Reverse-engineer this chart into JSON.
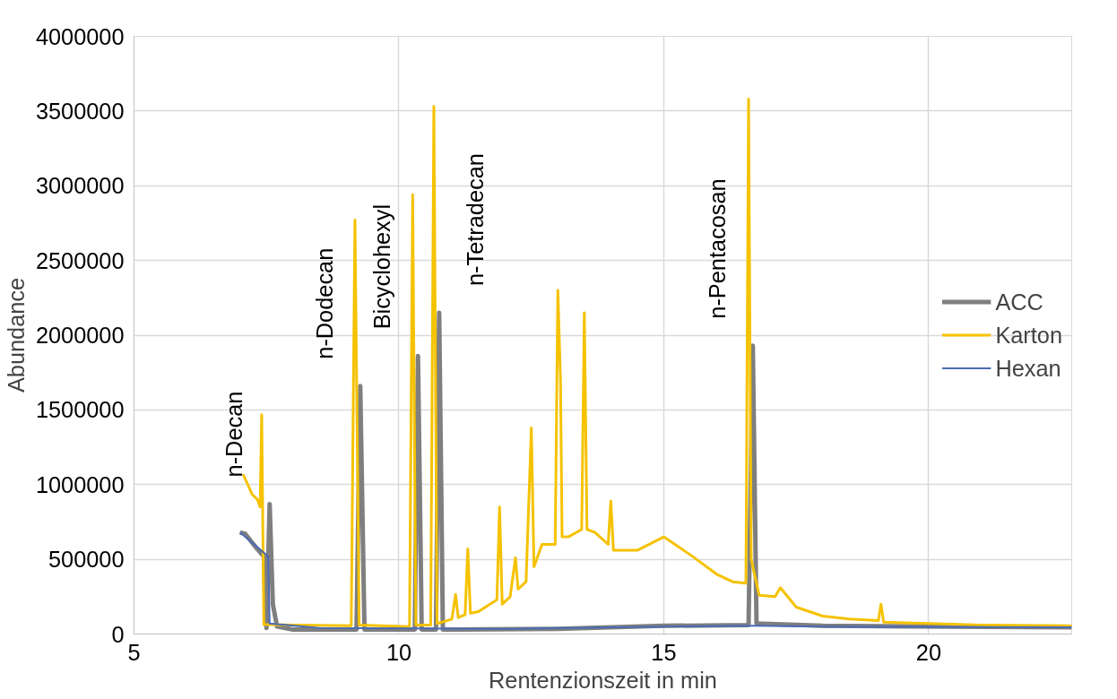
{
  "chart_data": {
    "type": "line",
    "xlabel": "Rentenzionszeit in min",
    "ylabel": "Abundance",
    "xlim": [
      5,
      22.7
    ],
    "ylim": [
      0,
      4000000
    ],
    "xticks": [
      5,
      10,
      15,
      20
    ],
    "yticks": [
      0,
      500000,
      1000000,
      1500000,
      2000000,
      2500000,
      3000000,
      3500000,
      4000000
    ],
    "grid": true,
    "legend": "right",
    "line_style": "solid",
    "marker": "none",
    "series": [
      {
        "name": "ACC",
        "color": "#7f7f7f",
        "x": [
          7.0,
          7.1,
          7.3,
          7.45,
          7.5,
          7.56,
          7.62,
          7.7,
          8.0,
          9.2,
          9.27,
          9.35,
          10.3,
          10.36,
          10.43,
          10.7,
          10.76,
          10.83,
          13,
          15,
          16.6,
          16.68,
          16.75,
          18,
          22.7
        ],
        "values": [
          680000,
          670000,
          580000,
          520000,
          40000,
          870000,
          200000,
          50000,
          30000,
          30000,
          1660000,
          30000,
          30000,
          1860000,
          30000,
          30000,
          2150000,
          30000,
          35000,
          55000,
          60000,
          1930000,
          70000,
          55000,
          45000
        ]
      },
      {
        "name": "Karton",
        "color": "#f5c200",
        "x": [
          7.06,
          7.23,
          7.33,
          7.38,
          7.41,
          7.45,
          8.0,
          9.1,
          9.17,
          9.25,
          10.2,
          10.26,
          10.32,
          10.6,
          10.66,
          10.72,
          11.0,
          11.07,
          11.12,
          11.25,
          11.3,
          11.35,
          11.5,
          11.85,
          11.9,
          11.95,
          12.1,
          12.2,
          12.25,
          12.4,
          12.5,
          12.55,
          12.7,
          12.95,
          13.0,
          13.05,
          13.08,
          13.2,
          13.45,
          13.5,
          13.55,
          13.7,
          13.95,
          14.0,
          14.05,
          14.5,
          15.0,
          15.5,
          16.0,
          16.3,
          16.55,
          16.6,
          16.65,
          16.8,
          17.1,
          17.2,
          17.5,
          18.0,
          18.5,
          19.05,
          19.1,
          19.15,
          20.0,
          21.0,
          22.7
        ],
        "values": [
          1069000,
          934000,
          900000,
          850000,
          1468000,
          64000,
          60000,
          55000,
          2770000,
          60000,
          50000,
          2940000,
          60000,
          60000,
          3530000,
          70000,
          100000,
          265000,
          110000,
          130000,
          570000,
          140000,
          150000,
          230000,
          850000,
          200000,
          250000,
          510000,
          300000,
          350000,
          1380000,
          450000,
          600000,
          600000,
          2300000,
          1700000,
          650000,
          650000,
          700000,
          2150000,
          700000,
          680000,
          600000,
          890000,
          560000,
          560000,
          650000,
          530000,
          400000,
          350000,
          340000,
          3580000,
          500000,
          260000,
          250000,
          310000,
          180000,
          120000,
          100000,
          90000,
          200000,
          80000,
          70000,
          60000,
          55000
        ]
      },
      {
        "name": "Hexan",
        "color": "#4a6bb5",
        "x": [
          7.0,
          7.2,
          7.53,
          7.56,
          8.5,
          12,
          15,
          16.7,
          18,
          22.7
        ],
        "values": [
          680000,
          620000,
          520000,
          70000,
          40000,
          35000,
          50000,
          55000,
          50000,
          45000
        ]
      }
    ],
    "annotations": [
      {
        "text": "n-Decan",
        "x": 7.56,
        "y": 870000
      },
      {
        "text": "n-Dodecan",
        "x": 9.27,
        "y": 1660000
      },
      {
        "text": "Bicyclohexyl",
        "x": 10.36,
        "y": 1860000
      },
      {
        "text": "n-Tetradecan",
        "x": 10.76,
        "y": 2150000
      },
      {
        "text": "n-Pentacosan",
        "x": 16.68,
        "y": 1930000
      }
    ]
  }
}
